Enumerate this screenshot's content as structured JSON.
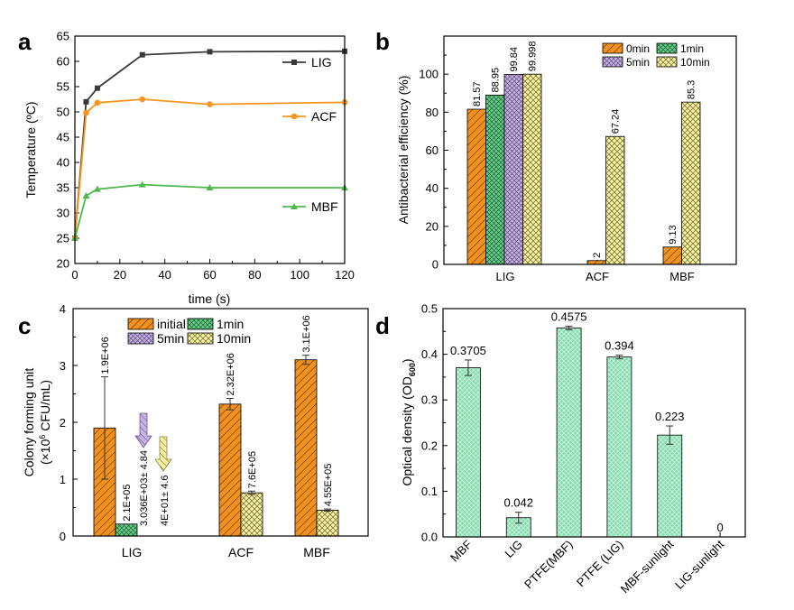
{
  "panel_labels": {
    "a": "a",
    "b": "b",
    "c": "c",
    "d": "d"
  },
  "colors": {
    "LIG_line": "#3a3a3a",
    "ACF_line": "#f7941d",
    "MBF_line": "#4fb84a",
    "orange_bar": "#f0901e",
    "green_bar": "#64cf88",
    "purple_bar": "#c9b3e6",
    "yellow_bar": "#f6f0a0",
    "mint_bar": "#86dcb0"
  },
  "chart_data": [
    {
      "id": "a",
      "type": "line",
      "xlabel": "time (s)",
      "ylabel": "Temperature (ºC)",
      "xlim": [
        0,
        120
      ],
      "ylim": [
        20,
        65
      ],
      "xticks": [
        0,
        20,
        40,
        60,
        80,
        100,
        120
      ],
      "yticks": [
        20,
        25,
        30,
        35,
        40,
        45,
        50,
        55,
        60,
        65
      ],
      "series": [
        {
          "name": "LIG",
          "marker": "square",
          "x": [
            0,
            5,
            10,
            30,
            60,
            120
          ],
          "y": [
            25,
            52,
            54.7,
            61.3,
            61.9,
            62
          ]
        },
        {
          "name": "ACF",
          "marker": "circle",
          "x": [
            0,
            5,
            10,
            30,
            60,
            120
          ],
          "y": [
            25,
            49.8,
            51.8,
            52.5,
            51.5,
            51.9
          ]
        },
        {
          "name": "MBF",
          "marker": "triangle",
          "x": [
            0,
            5,
            10,
            30,
            60,
            120
          ],
          "y": [
            25,
            33.4,
            34.7,
            35.6,
            35,
            35
          ]
        }
      ]
    },
    {
      "id": "b",
      "type": "bar",
      "ylabel": "Antibacterial efficiency (%)",
      "ylim": [
        0,
        120
      ],
      "yticks": [
        0,
        20,
        40,
        60,
        80,
        100
      ],
      "categories": [
        "LIG",
        "ACF",
        "MBF"
      ],
      "series": [
        {
          "name": "0min",
          "values": [
            81.57,
            2,
            9.13
          ],
          "labels": [
            "81.57",
            "2",
            "9.13"
          ]
        },
        {
          "name": "1min",
          "values": [
            88.95,
            null,
            null
          ],
          "labels": [
            "88.95",
            "",
            ""
          ]
        },
        {
          "name": "5min",
          "values": [
            99.84,
            null,
            null
          ],
          "labels": [
            "99.84",
            "",
            ""
          ]
        },
        {
          "name": "10min",
          "values": [
            99.998,
            67.24,
            85.3
          ],
          "labels": [
            "99.998",
            "67.24",
            "85.3"
          ]
        }
      ]
    },
    {
      "id": "c",
      "type": "bar",
      "ylabel_line1": "Colony forming unit",
      "ylabel_line2": "(×10",
      "ylabel_sup": "6",
      "ylabel_line2_end": " CFU/mL)",
      "ylim": [
        0,
        4
      ],
      "yticks": [
        0,
        1,
        2,
        3,
        4
      ],
      "categories": [
        "LIG",
        "ACF",
        "MBF"
      ],
      "series": [
        {
          "name": "initial",
          "values": [
            1.9,
            2.32,
            3.1
          ],
          "errors": [
            0.9,
            0.1,
            0.08
          ],
          "labels": [
            "1.9E+06",
            "2.32E+06",
            "3.1E+06"
          ]
        },
        {
          "name": "1min",
          "values": [
            0.21,
            null,
            null
          ],
          "labels": [
            "2.1E+05",
            "",
            ""
          ]
        },
        {
          "name": "5min",
          "values": [
            0.003036,
            null,
            null
          ],
          "labels": [
            "3.036E+03± 4.84",
            "",
            ""
          ]
        },
        {
          "name": "10min",
          "values": [
            4e-05,
            0.76,
            0.455
          ],
          "errors": [
            0,
            0.03,
            0.02
          ],
          "labels": [
            "4E+01± 4.6",
            "7.6E+05",
            "4.55E+05"
          ]
        }
      ]
    },
    {
      "id": "d",
      "type": "bar",
      "ylabel": "Optical density (OD",
      "ylabel_sub": "600",
      "ylabel_end": ")",
      "ylim": [
        0,
        0.5
      ],
      "yticks": [
        "0.0",
        "0.1",
        "0.2",
        "0.3",
        "0.4",
        "0.5"
      ],
      "categories": [
        "MBF",
        "LIG",
        "PTFE(MBF)",
        "PTFE (LIG)",
        "MBF-sunlight",
        "LIG-sunlight"
      ],
      "values": [
        0.3705,
        0.042,
        0.4575,
        0.394,
        0.223,
        0
      ],
      "errors": [
        0.017,
        0.012,
        0.004,
        0.004,
        0.02,
        0
      ],
      "labels": [
        "0.3705",
        "0.042",
        "0.4575",
        "0.394",
        "0.223",
        "0"
      ]
    }
  ]
}
